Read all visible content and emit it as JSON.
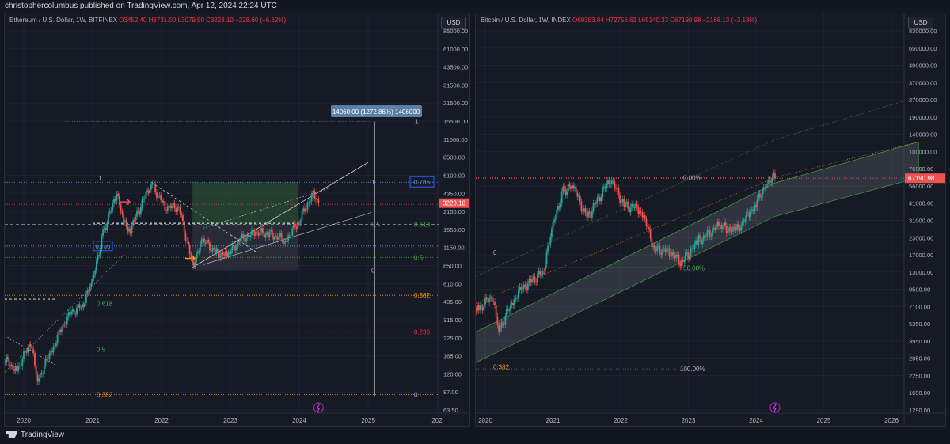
{
  "publisher_line": "christophercolumbus published on TradingView.com, Apr 12, 2024 22:24 UTC",
  "footer": {
    "brand": "TradingView"
  },
  "colors": {
    "up": "#26a69a",
    "down": "#ef5350",
    "accent": "#2962ff",
    "fib_green": "#4caf50",
    "fib_orange": "#ff9800",
    "fib_red": "#f23645"
  },
  "left": {
    "legend_title": "Ethereum / U.S. Dollar, 1W, BITFINEX",
    "legend_values": "O3452.40  H3731.00  L3079.50  C3223.10  −228.60 (−6.62%)",
    "currency": "USD",
    "measure_label": "14060.00 (1272.86%) 1406000",
    "current_price": "3223.10",
    "fib_badge": "0.786",
    "fib_badge_2": "0.786",
    "lbl_one_a": "1",
    "lbl_one_b": "1",
    "lbl_one_c": "1",
    "lbl_half_box": "0.5",
    "lbl_zero_box": "0",
    "lbl_618": "0.618",
    "lbl_5": "0.5",
    "lbl_382": "0.382",
    "lbl_236": "0.236",
    "lbl_zero_bottom": "0",
    "lbl_618_low": "0.618",
    "lbl_5_low": "0.5",
    "lbl_382_low": "0.382"
  },
  "right": {
    "legend_title": "Bitcoin / U.S. Dollar, 1W, INDEX",
    "legend_values": "O69353.84  H72756.63  L65140.33  C67190.98  −2168.13 (−3.13%)",
    "currency": "USD",
    "current_price": "67190.98",
    "lbl_zero_pct": "0.00%",
    "lbl_50_pct": "50.00%",
    "lbl_100_pct": "100.00%",
    "lbl_zero": "0",
    "lbl_382": "0.382"
  },
  "chart_data": [
    {
      "type": "line",
      "title": "Ethereum / U.S. Dollar, 1W, BITFINEX",
      "y_scale": "log",
      "ylim": [
        63.5,
        85000
      ],
      "y_ticks": [
        "85000.00",
        "61000.00",
        "43500.00",
        "31500.00",
        "21500.00",
        "15500.00",
        "11500.00",
        "8500.00",
        "6100.00",
        "4350.00",
        "2150.00",
        "1550.00",
        "1150.00",
        "850.00",
        "610.00",
        "435.00",
        "315.00",
        "225.00",
        "165.00",
        "120.00",
        "87.00",
        "63.50"
      ],
      "x_ticks": [
        "2020",
        "2021",
        "2022",
        "2023",
        "2024",
        "2025",
        "202"
      ],
      "series": [
        {
          "x": [
            2019.6,
            2019.9,
            2020.1,
            2020.2,
            2020.45,
            2020.65,
            2020.85,
            2021.0,
            2021.15,
            2021.35,
            2021.45,
            2021.55,
            2021.85,
            2022.05,
            2022.25,
            2022.45,
            2022.6,
            2022.8,
            2022.95,
            2023.15,
            2023.35,
            2023.55,
            2023.8,
            2024.0,
            2024.2,
            2024.28
          ],
          "values": [
            190,
            135,
            230,
            110,
            230,
            390,
            460,
            730,
            1850,
            3900,
            2200,
            2000,
            4700,
            3000,
            3000,
            1000,
            1600,
            1250,
            1200,
            1600,
            1850,
            1800,
            1600,
            2300,
            3900,
            3223
          ]
        }
      ]
    },
    {
      "type": "line",
      "title": "Bitcoin / U.S. Dollar, 1W, INDEX",
      "y_scale": "log",
      "ylim": [
        1290,
        830000
      ],
      "y_ticks": [
        "830000.00",
        "650000.00",
        "490000.00",
        "370000.00",
        "270000.00",
        "190000.00",
        "140000.00",
        "100000.00",
        "76000.00",
        "56000.00",
        "41000.00",
        "31000.00",
        "23000.00",
        "17000.00",
        "13000.00",
        "9500.00",
        "7100.00",
        "5350.00",
        "3950.00",
        "2950.00",
        "2250.00",
        "1690.00",
        "1290.00"
      ],
      "x_ticks": [
        "2020",
        "2021",
        "2022",
        "2023",
        "2024",
        "2025",
        "2026"
      ],
      "series": [
        {
          "x": [
            2019.6,
            2019.9,
            2020.1,
            2020.2,
            2020.45,
            2020.65,
            2020.85,
            2021.0,
            2021.15,
            2021.3,
            2021.5,
            2021.85,
            2022.05,
            2022.3,
            2022.5,
            2022.7,
            2022.9,
            2023.15,
            2023.45,
            2023.7,
            2023.9,
            2024.0,
            2024.15,
            2024.28
          ],
          "values": [
            8500,
            7200,
            9000,
            5000,
            9200,
            11500,
            13500,
            30000,
            55000,
            58000,
            34000,
            67000,
            42000,
            40000,
            20000,
            19500,
            16000,
            23000,
            30000,
            27000,
            37000,
            43000,
            63000,
            67190
          ]
        }
      ]
    }
  ]
}
